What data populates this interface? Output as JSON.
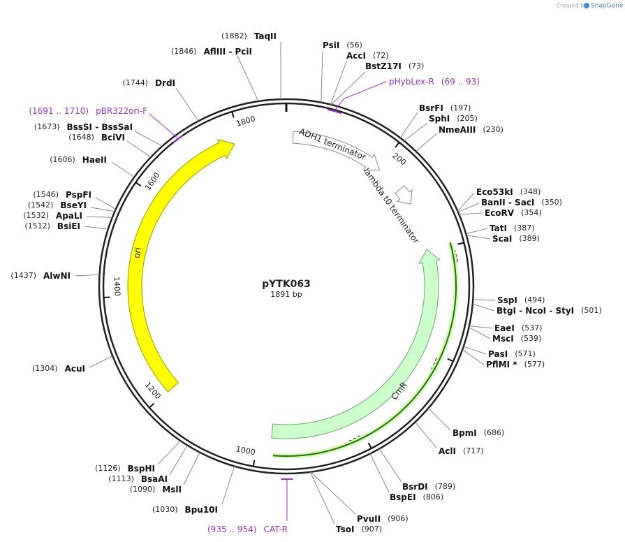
{
  "header": {
    "created_by": "Created by",
    "brand": "SnapGene"
  },
  "plasmid": {
    "name": "pYTK063",
    "length": "1891 bp"
  },
  "ring_ticks": [
    "200",
    "400",
    "600",
    "800",
    "1000",
    "1200",
    "1400",
    "1600",
    "1800"
  ],
  "features": [
    {
      "name": "ori"
    },
    {
      "name": "CmR"
    },
    {
      "name": "ADH1 terminator"
    },
    {
      "name": "lambda t0 terminator"
    }
  ],
  "enzymes_right": [
    {
      "name": "PsiI",
      "site": "(56)"
    },
    {
      "name": "AccI",
      "site": "(72)"
    },
    {
      "name": "BstZ17I",
      "site": "(73)"
    },
    {
      "name": "BsrFI",
      "site": "(197)"
    },
    {
      "name": "SphI",
      "site": "(205)"
    },
    {
      "name": "NmeAIII",
      "site": "(230)"
    },
    {
      "name": "Eco53kI",
      "site": "(348)"
    },
    {
      "name": "BanII - SacI",
      "site": "(350)"
    },
    {
      "name": "EcoRV",
      "site": "(354)"
    },
    {
      "name": "TatI",
      "site": "(387)"
    },
    {
      "name": "ScaI",
      "site": "(389)"
    },
    {
      "name": "SspI",
      "site": "(494)"
    },
    {
      "name": "BtgI - NcoI - StyI",
      "site": "(501)"
    },
    {
      "name": "EaeI",
      "site": "(537)"
    },
    {
      "name": "MscI",
      "site": "(539)"
    },
    {
      "name": "PasI",
      "site": "(571)"
    },
    {
      "name": "PflMI *",
      "site": "(577)"
    },
    {
      "name": "BpmI",
      "site": "(686)"
    },
    {
      "name": "AclI",
      "site": "(717)"
    },
    {
      "name": "BsrDI",
      "site": "(789)"
    },
    {
      "name": "BspEI",
      "site": "(806)"
    },
    {
      "name": "PvuII",
      "site": "(906)"
    },
    {
      "name": "TsoI",
      "site": "(907)"
    }
  ],
  "enzymes_left": [
    {
      "name": "TaqII",
      "site": "(1882)"
    },
    {
      "name": "AflIII - PciI",
      "site": "(1846)"
    },
    {
      "name": "DrdI",
      "site": "(1744)"
    },
    {
      "name": "BssSI - BssSaI",
      "site": "(1673)"
    },
    {
      "name": "BciVI",
      "site": "(1648)"
    },
    {
      "name": "HaeII",
      "site": "(1606)"
    },
    {
      "name": "PspFI",
      "site": "(1546)"
    },
    {
      "name": "BseYI",
      "site": "(1542)"
    },
    {
      "name": "ApaLI",
      "site": "(1532)"
    },
    {
      "name": "BsiEI",
      "site": "(1512)"
    },
    {
      "name": "AlwNI",
      "site": "(1437)"
    },
    {
      "name": "AcuI",
      "site": "(1304)"
    },
    {
      "name": "BspHI",
      "site": "(1126)"
    },
    {
      "name": "BsaAI",
      "site": "(1113)"
    },
    {
      "name": "MslI",
      "site": "(1090)"
    },
    {
      "name": "Bpu10I",
      "site": "(1030)"
    }
  ],
  "primers": [
    {
      "name": "pHybLex-R",
      "range": "(69 .. 93)"
    },
    {
      "name": "pBR322ori-F",
      "range": "(1691 .. 1710)"
    },
    {
      "name": "CAT-R",
      "range": "(935 .. 954)"
    }
  ]
}
